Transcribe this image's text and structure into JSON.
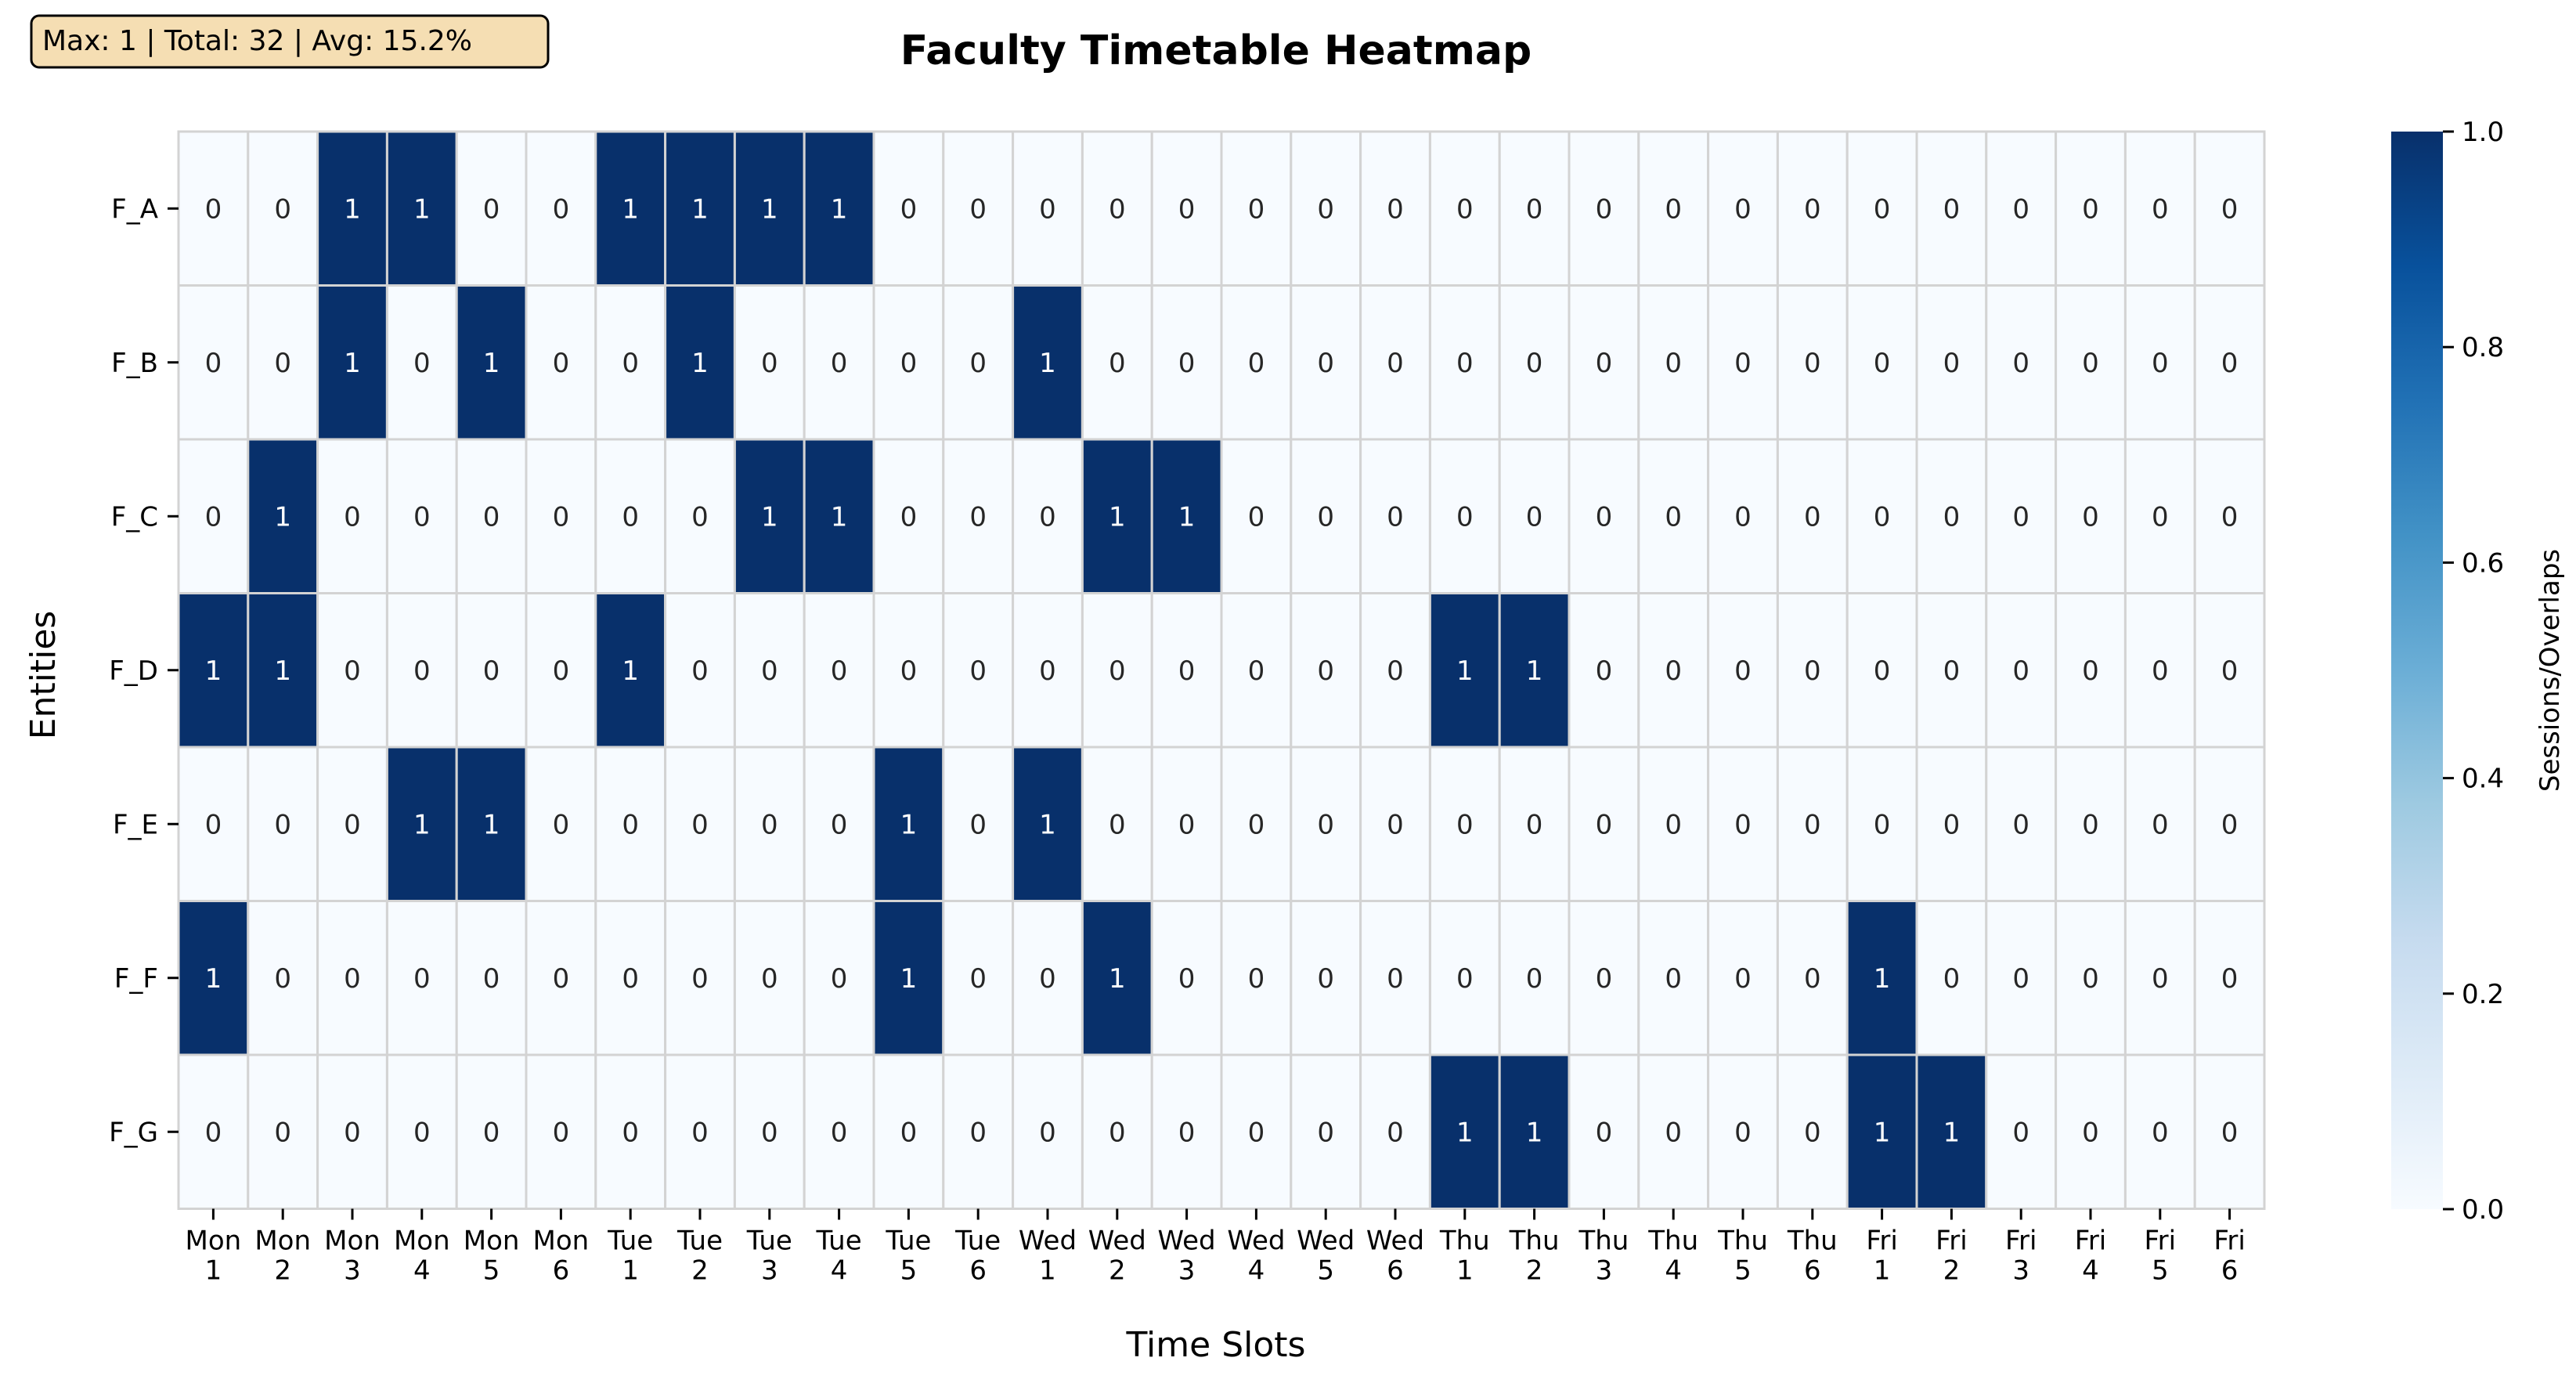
{
  "chart_data": {
    "type": "heatmap",
    "title": "Faculty Timetable Heatmap",
    "xlabel": "Time Slots",
    "ylabel": "Entities",
    "colorbar_label": "Sessions/Overlaps",
    "colorbar_ticks": [
      "0.0",
      "0.2",
      "0.4",
      "0.6",
      "0.8",
      "1.0"
    ],
    "colorbar_range": [
      0,
      1
    ],
    "stats_box": "Max: 1 | Total: 32 | Avg: 15.2%",
    "rows": [
      "F_A",
      "F_B",
      "F_C",
      "F_D",
      "F_E",
      "F_F",
      "F_G"
    ],
    "columns": [
      [
        "Mon",
        "1"
      ],
      [
        "Mon",
        "2"
      ],
      [
        "Mon",
        "3"
      ],
      [
        "Mon",
        "4"
      ],
      [
        "Mon",
        "5"
      ],
      [
        "Mon",
        "6"
      ],
      [
        "Tue",
        "1"
      ],
      [
        "Tue",
        "2"
      ],
      [
        "Tue",
        "3"
      ],
      [
        "Tue",
        "4"
      ],
      [
        "Tue",
        "5"
      ],
      [
        "Tue",
        "6"
      ],
      [
        "Wed",
        "1"
      ],
      [
        "Wed",
        "2"
      ],
      [
        "Wed",
        "3"
      ],
      [
        "Wed",
        "4"
      ],
      [
        "Wed",
        "5"
      ],
      [
        "Wed",
        "6"
      ],
      [
        "Thu",
        "1"
      ],
      [
        "Thu",
        "2"
      ],
      [
        "Thu",
        "3"
      ],
      [
        "Thu",
        "4"
      ],
      [
        "Thu",
        "5"
      ],
      [
        "Thu",
        "6"
      ],
      [
        "Fri",
        "1"
      ],
      [
        "Fri",
        "2"
      ],
      [
        "Fri",
        "3"
      ],
      [
        "Fri",
        "4"
      ],
      [
        "Fri",
        "5"
      ],
      [
        "Fri",
        "6"
      ]
    ],
    "values": [
      [
        0,
        0,
        1,
        1,
        0,
        0,
        1,
        1,
        1,
        1,
        0,
        0,
        0,
        0,
        0,
        0,
        0,
        0,
        0,
        0,
        0,
        0,
        0,
        0,
        0,
        0,
        0,
        0,
        0,
        0
      ],
      [
        0,
        0,
        1,
        0,
        1,
        0,
        0,
        1,
        0,
        0,
        0,
        0,
        1,
        0,
        0,
        0,
        0,
        0,
        0,
        0,
        0,
        0,
        0,
        0,
        0,
        0,
        0,
        0,
        0,
        0
      ],
      [
        0,
        1,
        0,
        0,
        0,
        0,
        0,
        0,
        1,
        1,
        0,
        0,
        0,
        1,
        1,
        0,
        0,
        0,
        0,
        0,
        0,
        0,
        0,
        0,
        0,
        0,
        0,
        0,
        0,
        0
      ],
      [
        1,
        1,
        0,
        0,
        0,
        0,
        1,
        0,
        0,
        0,
        0,
        0,
        0,
        0,
        0,
        0,
        0,
        0,
        1,
        1,
        0,
        0,
        0,
        0,
        0,
        0,
        0,
        0,
        0,
        0
      ],
      [
        0,
        0,
        0,
        1,
        1,
        0,
        0,
        0,
        0,
        0,
        1,
        0,
        1,
        0,
        0,
        0,
        0,
        0,
        0,
        0,
        0,
        0,
        0,
        0,
        0,
        0,
        0,
        0,
        0,
        0
      ],
      [
        1,
        0,
        0,
        0,
        0,
        0,
        0,
        0,
        0,
        0,
        1,
        0,
        0,
        1,
        0,
        0,
        0,
        0,
        0,
        0,
        0,
        0,
        0,
        0,
        1,
        0,
        0,
        0,
        0,
        0
      ],
      [
        0,
        0,
        0,
        0,
        0,
        0,
        0,
        0,
        0,
        0,
        0,
        0,
        0,
        0,
        0,
        0,
        0,
        0,
        1,
        1,
        0,
        0,
        0,
        0,
        1,
        1,
        0,
        0,
        0,
        0
      ]
    ],
    "colors": {
      "low": "#f7fbff",
      "high": "#08306b",
      "grid": "#d3d3d3",
      "stats_bg": "#f5deb3"
    }
  }
}
